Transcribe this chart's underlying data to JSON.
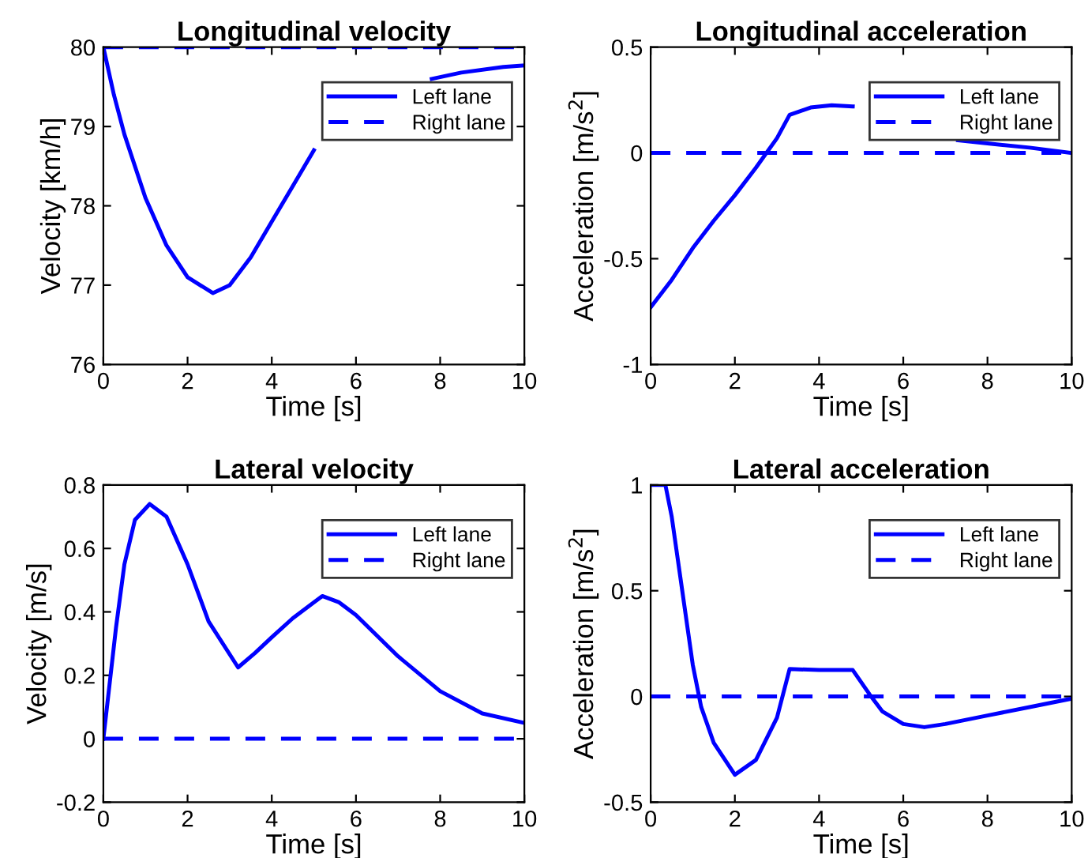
{
  "chart_data": [
    {
      "type": "line",
      "title": "Longitudinal velocity",
      "xlabel": "Time [s]",
      "ylabel": "Velocity [km/h]",
      "xlim": [
        0,
        10
      ],
      "xticks": [
        0,
        2,
        4,
        6,
        8,
        10
      ],
      "ylim": [
        76,
        80
      ],
      "yticks": [
        76,
        77,
        78,
        79,
        80
      ],
      "legend": "top right",
      "grid": false,
      "series": [
        {
          "name": "Left lane",
          "color": "#0000ff",
          "line_style": "solid",
          "x": [
            0,
            0.25,
            0.5,
            1,
            1.5,
            2,
            2.6,
            3,
            3.5,
            4,
            4.5,
            5,
            6,
            7,
            7.8,
            8.5,
            9.5,
            10
          ],
          "values": [
            80,
            79.4,
            78.9,
            78.1,
            77.5,
            77.1,
            76.9,
            77.0,
            77.35,
            77.8,
            78.25,
            78.7,
            null,
            null,
            79.6,
            79.68,
            79.75,
            79.77
          ]
        },
        {
          "name": "Right lane",
          "color": "#0000ff",
          "line_style": "dashed",
          "x": [
            0,
            10
          ],
          "values": [
            80,
            80
          ]
        }
      ]
    },
    {
      "type": "line",
      "title": "Longitudinal acceleration",
      "xlabel": "Time [s]",
      "ylabel": "Acceleration [m/s$^{2}$]",
      "xlim": [
        0,
        10
      ],
      "xticks": [
        0,
        2,
        4,
        6,
        8,
        10
      ],
      "ylim": [
        -1,
        0.5
      ],
      "yticks": [
        -1,
        -0.5,
        0,
        0.5
      ],
      "legend": "top right",
      "grid": false,
      "series": [
        {
          "name": "Left lane",
          "color": "#0000ff",
          "line_style": "solid",
          "x": [
            0,
            0.5,
            1,
            1.5,
            2,
            2.5,
            3,
            3.3,
            3.8,
            4.3,
            4.8,
            6,
            7.3,
            8,
            9,
            10
          ],
          "values": [
            -0.73,
            -0.6,
            -0.45,
            -0.32,
            -0.2,
            -0.07,
            0.07,
            0.18,
            0.215,
            0.225,
            0.22,
            null,
            0.06,
            0.045,
            0.025,
            0.0
          ]
        },
        {
          "name": "Right lane",
          "color": "#0000ff",
          "line_style": "dashed",
          "x": [
            0,
            10
          ],
          "values": [
            0,
            0
          ]
        }
      ]
    },
    {
      "type": "line",
      "title": "Lateral velocity",
      "xlabel": "Time [s]",
      "ylabel": "Velocity [m/s]",
      "xlim": [
        0,
        10
      ],
      "xticks": [
        0,
        2,
        4,
        6,
        8,
        10
      ],
      "ylim": [
        -0.2,
        0.8
      ],
      "yticks": [
        -0.2,
        0,
        0.2,
        0.4,
        0.6,
        0.8
      ],
      "legend": "top right",
      "grid": false,
      "series": [
        {
          "name": "Left lane",
          "color": "#0000ff",
          "line_style": "solid",
          "x": [
            0,
            0.3,
            0.5,
            0.75,
            1.1,
            1.5,
            2,
            2.5,
            3.2,
            3.6,
            4,
            4.5,
            5.2,
            5.6,
            6,
            7,
            8,
            9,
            10
          ],
          "values": [
            0,
            0.35,
            0.55,
            0.69,
            0.74,
            0.7,
            0.55,
            0.37,
            0.225,
            0.27,
            0.32,
            0.38,
            0.45,
            0.43,
            0.39,
            0.26,
            0.15,
            0.08,
            0.05
          ]
        },
        {
          "name": "Right lane",
          "color": "#0000ff",
          "line_style": "dashed",
          "x": [
            0,
            10
          ],
          "values": [
            0,
            0
          ]
        }
      ]
    },
    {
      "type": "line",
      "title": "Lateral acceleration",
      "xlabel": "Time [s]",
      "ylabel": "Acceleration [m/s$^{2}$]",
      "xlim": [
        0,
        10
      ],
      "xticks": [
        0,
        2,
        4,
        6,
        8,
        10
      ],
      "ylim": [
        -0.5,
        1
      ],
      "yticks": [
        -0.5,
        0,
        0.5,
        1
      ],
      "legend": "top right",
      "grid": false,
      "series": [
        {
          "name": "Left lane",
          "color": "#0000ff",
          "line_style": "solid",
          "x": [
            0,
            0.35,
            0.5,
            0.75,
            1,
            1.2,
            1.5,
            2,
            2.5,
            3,
            3.3,
            4,
            4.8,
            5.2,
            5.5,
            6,
            6.5,
            7,
            8,
            9,
            10
          ],
          "values": [
            1,
            1.0,
            0.85,
            0.5,
            0.15,
            -0.05,
            -0.22,
            -0.37,
            -0.3,
            -0.1,
            0.13,
            0.125,
            0.125,
            0.01,
            -0.07,
            -0.13,
            -0.145,
            -0.13,
            -0.09,
            -0.05,
            -0.01
          ]
        },
        {
          "name": "Right lane",
          "color": "#0000ff",
          "line_style": "dashed",
          "x": [
            0,
            10
          ],
          "values": [
            0,
            0
          ]
        }
      ]
    }
  ]
}
